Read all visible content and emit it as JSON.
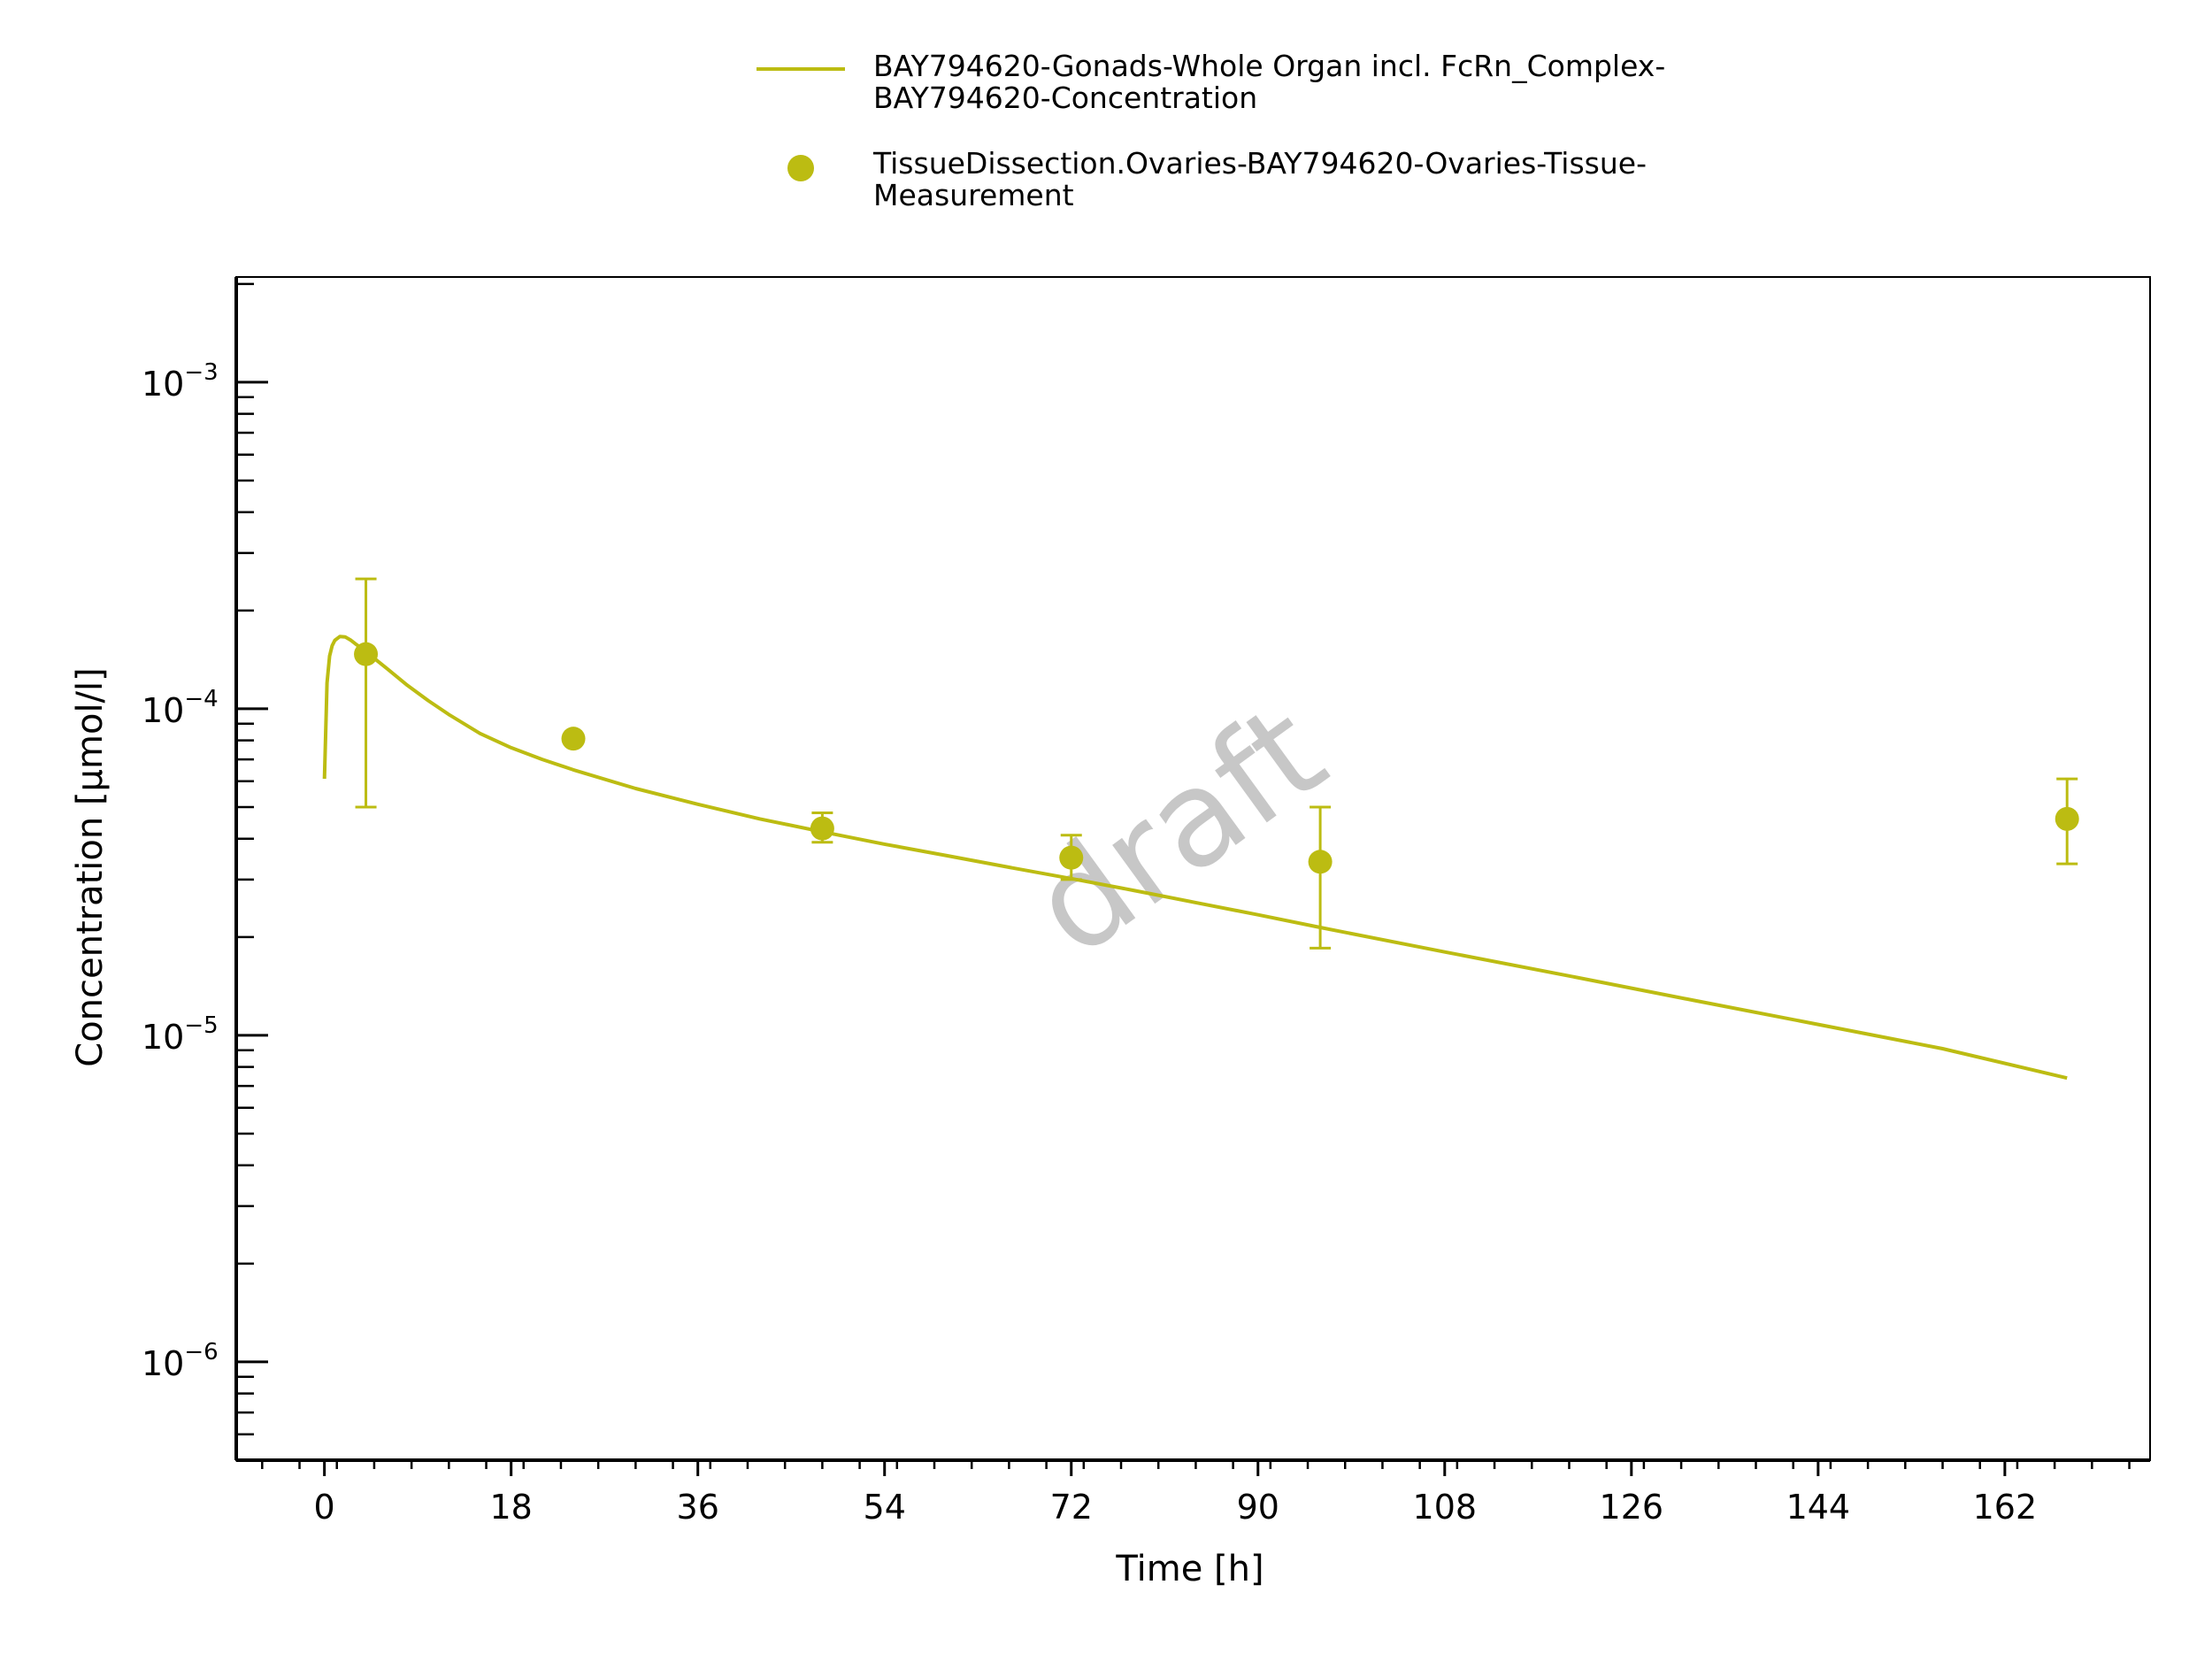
{
  "chart_data": {
    "type": "line",
    "xlabel": "Time [h]",
    "ylabel": "Concentration [µmol/l]",
    "xlim": [
      -8.5,
      176
    ],
    "ylim": [
      5e-07,
      0.0021
    ],
    "yscale": "log",
    "x_ticks": [
      0,
      18,
      36,
      54,
      72,
      90,
      108,
      126,
      144,
      162
    ],
    "x_tick_labels": [
      "0",
      "18",
      "36",
      "54",
      "72",
      "90",
      "108",
      "126",
      "144",
      "162"
    ],
    "y_ticks": [
      1e-06,
      1e-05,
      0.0001,
      0.001
    ],
    "y_tick_labels": [
      {
        "base": "10",
        "exp": "−6"
      },
      {
        "base": "10",
        "exp": "−5"
      },
      {
        "base": "10",
        "exp": "−4"
      },
      {
        "base": "10",
        "exp": "−3"
      }
    ],
    "grid": false,
    "legend_position": "top-center",
    "color": "#bcbc12",
    "watermark": "draft",
    "series": [
      {
        "name_lines": [
          "BAY794620-Gonads-Whole Organ incl. FcRn_Complex-",
          "BAY794620-Concentration"
        ],
        "kind": "line",
        "x": [
          0,
          0.25,
          0.5,
          0.75,
          1,
          1.5,
          2,
          2.5,
          3,
          4,
          5,
          6,
          8,
          10,
          12,
          15,
          18,
          21,
          24,
          30,
          36,
          42,
          48,
          54,
          60,
          66,
          72,
          78,
          84,
          90,
          96,
          108,
          120,
          132,
          144,
          156,
          168
        ],
        "y": [
          6.1e-05,
          0.00012,
          0.000145,
          0.000156,
          0.000162,
          0.0001665,
          0.000166,
          0.0001625,
          0.000158,
          0.00015,
          0.000141,
          0.000133,
          0.000118,
          0.000106,
          9.6e-05,
          8.4e-05,
          7.6e-05,
          7e-05,
          6.5e-05,
          5.7e-05,
          5.1e-05,
          4.6e-05,
          4.2e-05,
          3.85e-05,
          3.55e-05,
          3.27e-05,
          3.02e-05,
          2.78e-05,
          2.55e-05,
          2.34e-05,
          2.14e-05,
          1.8e-05,
          1.52e-05,
          1.28e-05,
          1.08e-05,
          9.1e-06,
          7.4e-06
        ]
      },
      {
        "name_lines": [
          "TissueDissection.Ovaries-BAY794620-Ovaries-Tissue-",
          "Measurement"
        ],
        "kind": "scatter",
        "x": [
          4,
          24,
          48,
          72,
          96,
          168
        ],
        "y": [
          0.000147,
          8.1e-05,
          4.3e-05,
          3.5e-05,
          3.4e-05,
          4.6e-05
        ],
        "y_err_low": [
          5e-05,
          null,
          3.9e-05,
          3e-05,
          1.85e-05,
          3.35e-05
        ],
        "y_err_high": [
          0.00025,
          null,
          4.8e-05,
          4.1e-05,
          5e-05,
          6.1e-05
        ]
      }
    ]
  }
}
